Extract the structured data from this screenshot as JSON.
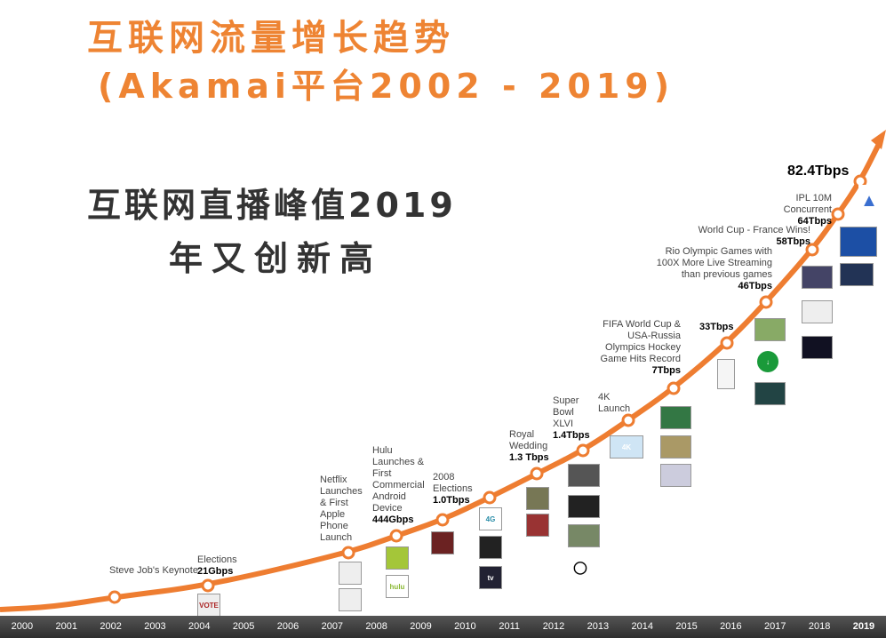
{
  "title_line1": "互联网流量增长趋势",
  "title_line2": "(Akamai平台2002 - 2019)",
  "subtitle_line1": "互联网直播峰值2019",
  "subtitle_line2": "年又创新高",
  "colors": {
    "curve": "#ee7d31",
    "title": "#ee8433",
    "axis": "#3a3a3a"
  },
  "chart_data": {
    "type": "line",
    "title": "互联网流量增长趋势 (Akamai平台2002 - 2019)",
    "x": [
      "2000",
      "2001",
      "2002",
      "2003",
      "2004",
      "2005",
      "2006",
      "2007",
      "2008",
      "2009",
      "2010",
      "2011",
      "2012",
      "2013",
      "2014",
      "2015",
      "2016",
      "2017",
      "2018",
      "2019"
    ],
    "milestones": [
      {
        "year": "2002",
        "event": "Steve Job's Keynote",
        "value": ""
      },
      {
        "year": "2004",
        "event": "Elections",
        "value": "21Gbps"
      },
      {
        "year": "2007",
        "event": "Netflix Launches & First Apple Phone Launch",
        "value": ""
      },
      {
        "year": "2008",
        "event": "Hulu Launches & First Commercial Android Device",
        "value": "444Gbps"
      },
      {
        "year": "2009",
        "event": "2008 Elections",
        "value": "1.0Tbps"
      },
      {
        "year": "2010",
        "event": "",
        "value": ""
      },
      {
        "year": "2011",
        "event": "Royal Wedding",
        "value": "1.3 Tbps"
      },
      {
        "year": "2012",
        "event": "Super Bowl XLVI",
        "value": "1.4Tbps"
      },
      {
        "year": "2013",
        "event": "4K Launch",
        "value": ""
      },
      {
        "year": "2014",
        "event": "FIFA World Cup & USA-Russia Olympics Hockey Game Hits Record",
        "value": "7Tbps"
      },
      {
        "year": "2015",
        "event": "",
        "value": "33Tbps"
      },
      {
        "year": "2016",
        "event": "Rio Olympic Games with 100X More Live Streaming than previous games",
        "value": "46Tbps"
      },
      {
        "year": "2017",
        "event": "World Cup - France Wins!",
        "value": "58Tbps"
      },
      {
        "year": "2018",
        "event": "IPL 10M Concurrent",
        "value": "64Tbps"
      },
      {
        "year": "2019",
        "event": "",
        "value": "82.4Tbps"
      }
    ],
    "thumbnails": [
      "VOTE",
      "hulu",
      "4G",
      "tv",
      "4K"
    ]
  }
}
